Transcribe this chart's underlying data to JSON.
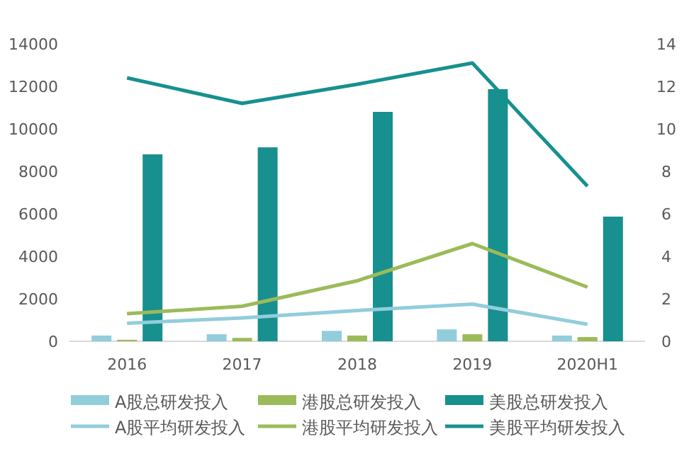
{
  "chart_data": {
    "type": "bar",
    "categories": [
      "2016",
      "2017",
      "2018",
      "2019",
      "2020H1"
    ],
    "series": [
      {
        "name": "A股总研发投入",
        "color": "#92cddc",
        "values": [
          270,
          330,
          490,
          560,
          270
        ]
      },
      {
        "name": "港股总研发投入",
        "color": "#9bbb59",
        "values": [
          70,
          160,
          270,
          330,
          200
        ]
      },
      {
        "name": "美股总研发投入",
        "color": "#17908f",
        "values": [
          8800,
          9130,
          10800,
          11870,
          5870
        ]
      },
      {
        "name": "A股平均研发投入",
        "type": "line",
        "axis": "y2",
        "color": "#92cddc",
        "values": [
          0.85,
          1.1,
          1.45,
          1.75,
          0.8
        ]
      },
      {
        "name": "港股平均研发投入",
        "type": "line",
        "axis": "y2",
        "color": "#9bbb59",
        "values": [
          1.3,
          1.65,
          2.85,
          4.6,
          2.55
        ]
      },
      {
        "name": "美股平均研发投入",
        "type": "line",
        "axis": "y2",
        "color": "#17908f",
        "values": [
          12.4,
          11.2,
          12.1,
          13.1,
          7.3
        ]
      }
    ],
    "ylim": [
      0,
      14000
    ],
    "yticks": [
      0,
      2000,
      4000,
      6000,
      8000,
      10000,
      12000,
      14000
    ],
    "y2lim": [
      0,
      14
    ],
    "y2ticks": [
      0,
      2,
      4,
      6,
      8,
      10,
      12,
      14
    ],
    "grid": false,
    "legend": "bottom",
    "marker": "none",
    "line_style": "solid"
  }
}
